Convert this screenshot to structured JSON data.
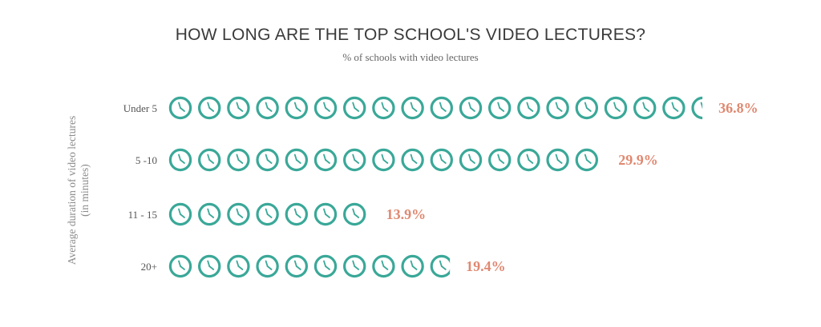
{
  "chart_data": {
    "type": "bar",
    "title": "HOW LONG ARE THE TOP SCHOOL'S VIDEO LECTURES?",
    "subtitle": "% of schools with video lectures",
    "ylabel_line1": "Average duration of video lectures",
    "ylabel_line2": "(in minutes)",
    "categories": [
      "Under 5",
      "5 -10",
      "11 - 15",
      "20+"
    ],
    "values": [
      36.8,
      29.9,
      13.9,
      19.4
    ],
    "value_labels": [
      "36.8%",
      "29.9%",
      "13.9%",
      "19.4%"
    ],
    "percent_per_icon": 2,
    "icon": "clock-icon",
    "colors": {
      "icon": "#3aa898",
      "value_label": "#e08870"
    }
  }
}
